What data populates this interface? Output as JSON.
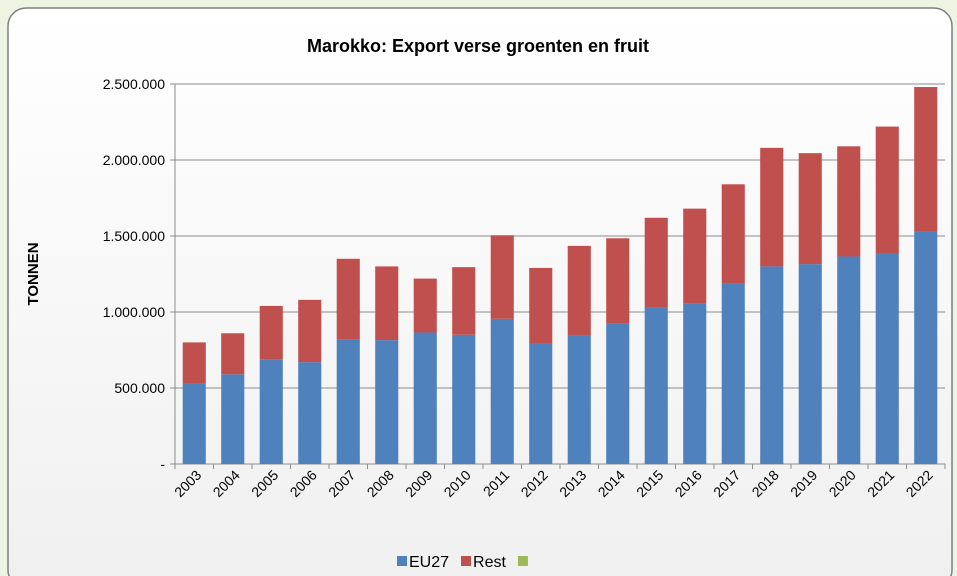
{
  "chart_data": {
    "type": "stacked_bar",
    "title": "Marokko: Export verse groenten en fruit",
    "y_label": "TONNEN",
    "categories": [
      "2003",
      "2004",
      "2005",
      "2006",
      "2007",
      "2008",
      "2009",
      "2010",
      "2011",
      "2012",
      "2013",
      "2014",
      "2015",
      "2016",
      "2017",
      "2018",
      "2019",
      "2020",
      "2021",
      "2022"
    ],
    "series": [
      {
        "name": "EU27",
        "color": "#4f81bd",
        "values": [
          530000,
          590000,
          690000,
          670000,
          820000,
          815000,
          865000,
          850000,
          955000,
          790000,
          845000,
          925000,
          1030000,
          1055000,
          1185000,
          1300000,
          1315000,
          1365000,
          1385000,
          1530000
        ]
      },
      {
        "name": "Rest",
        "color": "#c0504d",
        "values": [
          270000,
          270000,
          350000,
          410000,
          530000,
          485000,
          355000,
          445000,
          550000,
          500000,
          590000,
          560000,
          590000,
          625000,
          655000,
          780000,
          730000,
          725000,
          835000,
          950000
        ]
      }
    ],
    "ylim": [
      0,
      2500000
    ],
    "yticks": [
      {
        "value": 0,
        "label": "-"
      },
      {
        "value": 500000,
        "label": "500.000"
      },
      {
        "value": 1000000,
        "label": "1.000.000"
      },
      {
        "value": 1500000,
        "label": "1.500.000"
      },
      {
        "value": 2000000,
        "label": "2.000.000"
      },
      {
        "value": 2500000,
        "label": "2.500.000"
      }
    ],
    "grid": true,
    "legend": "bottom"
  }
}
